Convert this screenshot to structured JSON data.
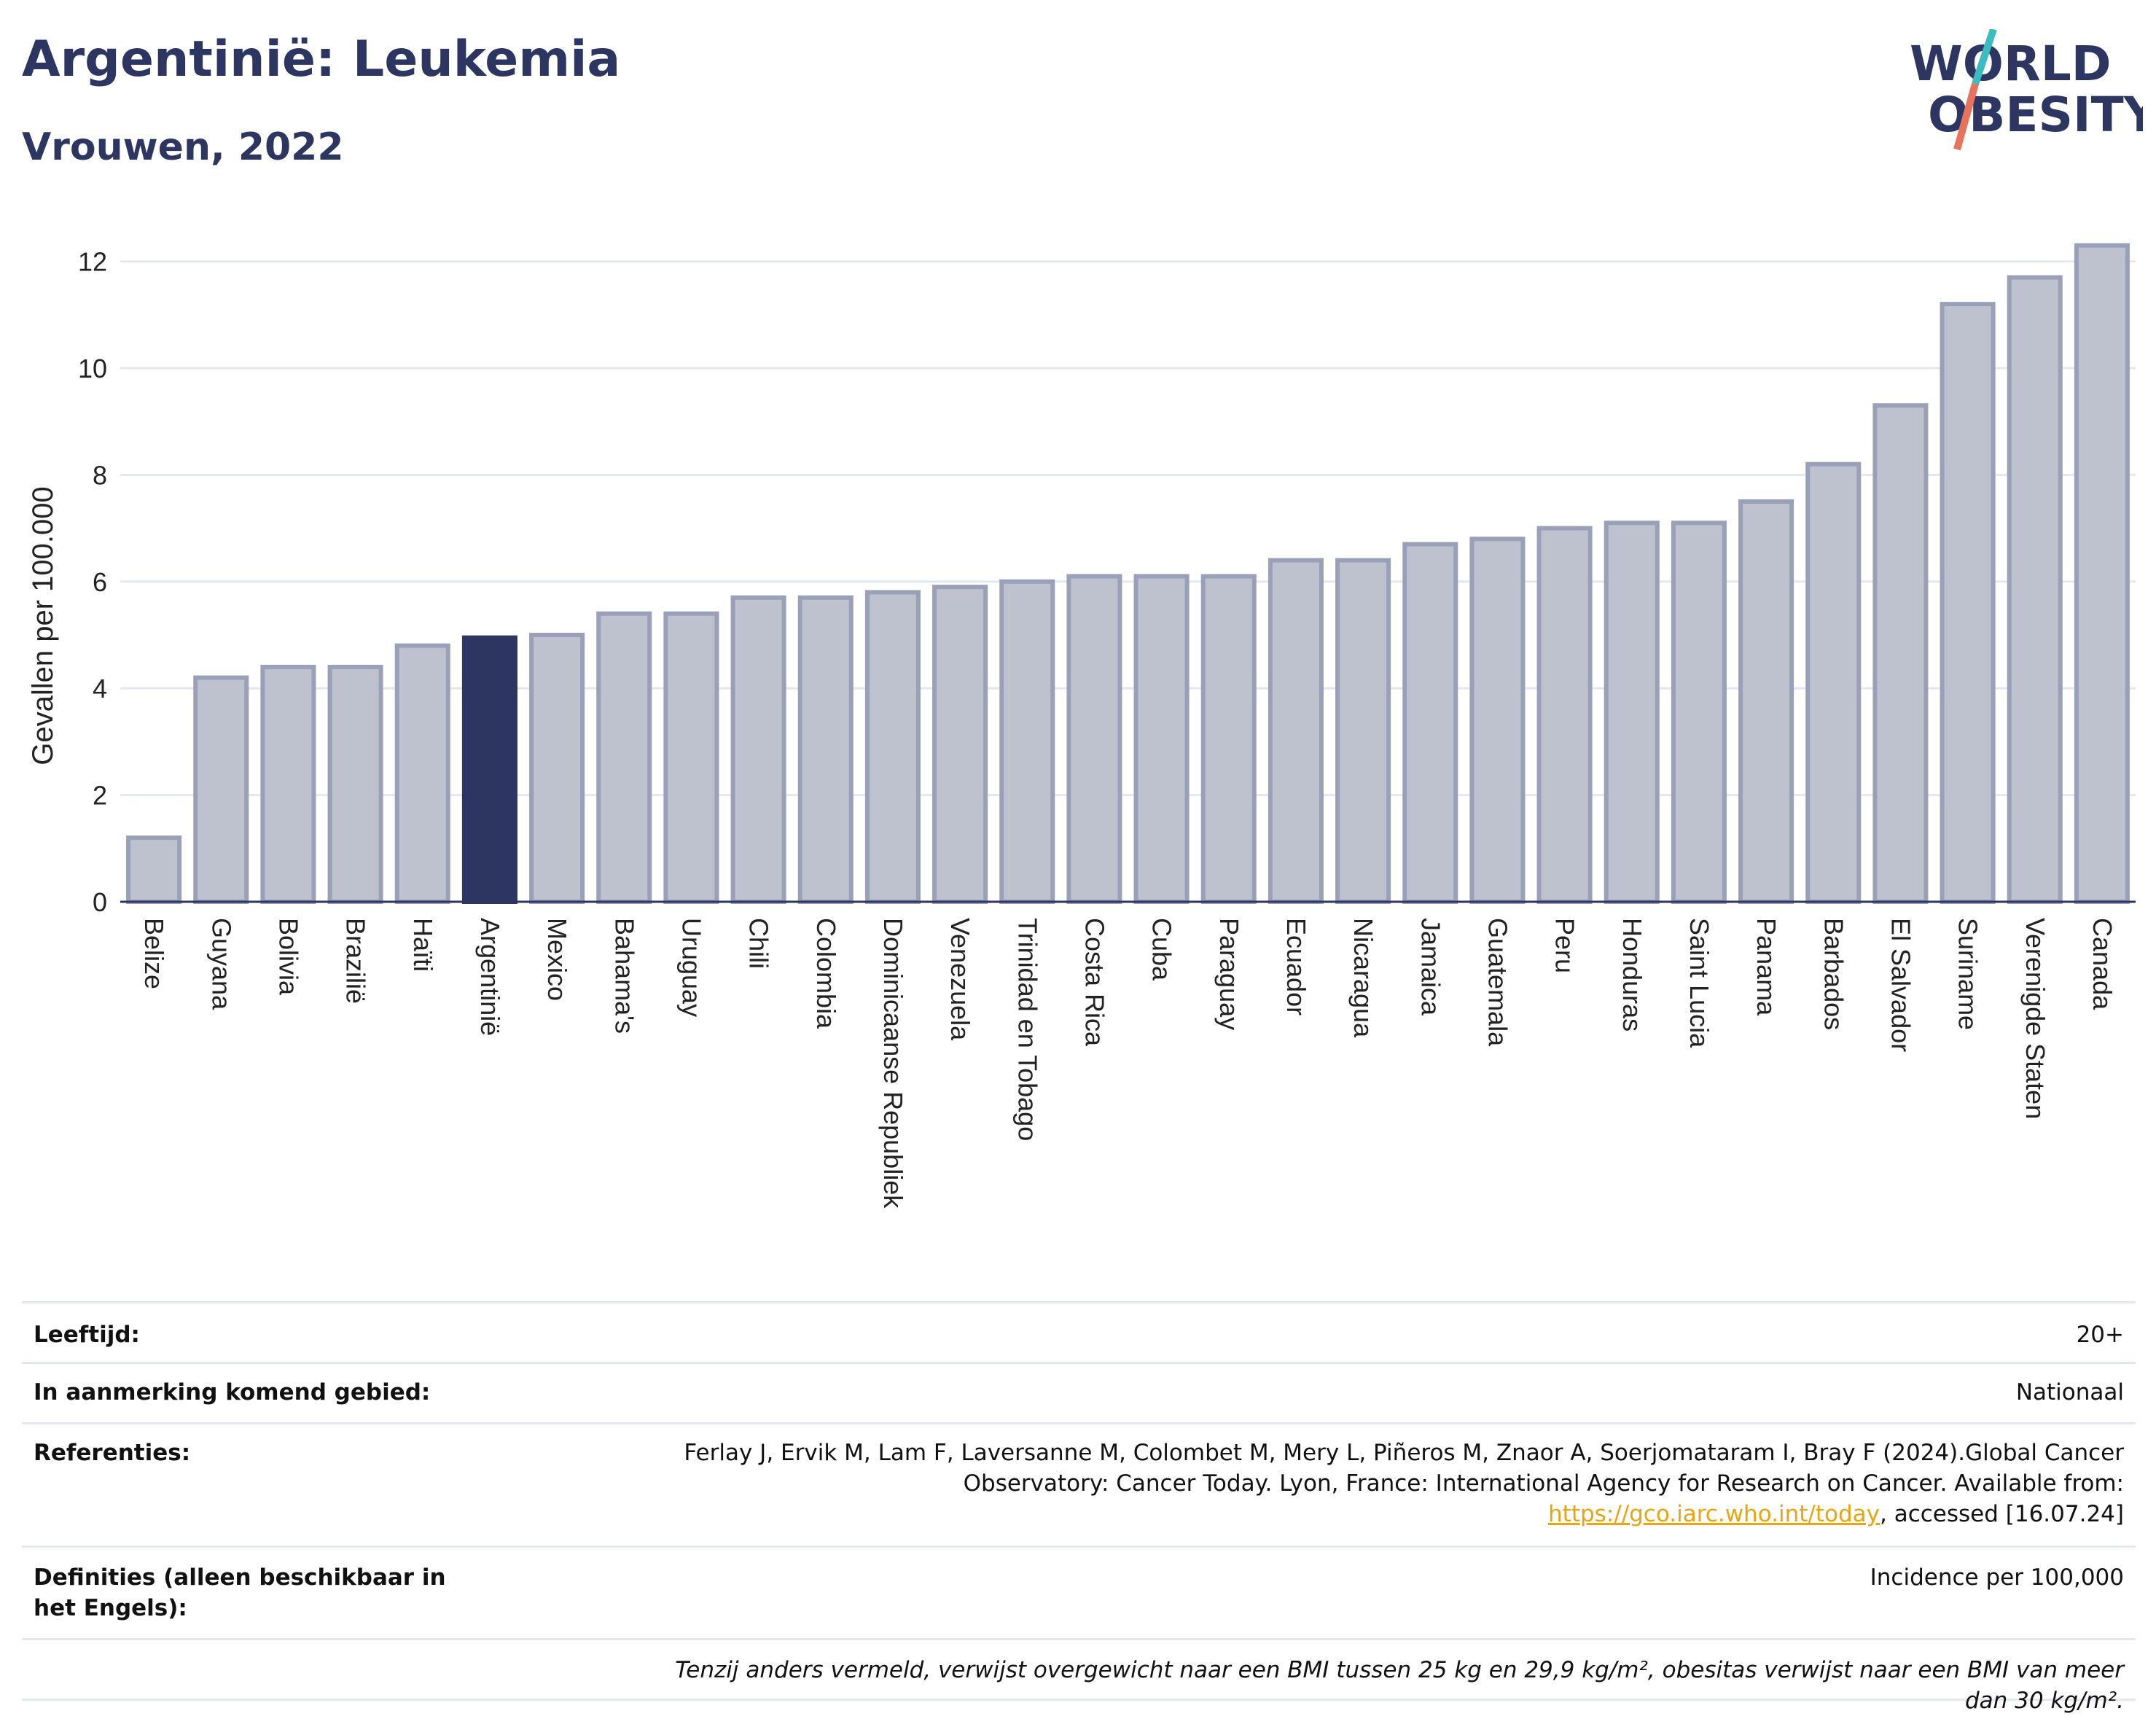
{
  "header": {
    "title": "Argentinië: Leukemia",
    "subtitle": "Vrouwen, 2022",
    "logo_line1": "WORLD",
    "logo_line2": "OBESITY"
  },
  "colors": {
    "title": "#2c3660",
    "bar_default": "#bec2cf",
    "bar_default_border": "#9aa0b8",
    "bar_highlight": "#2c3660",
    "grid": "#e6e8f0",
    "link": "#e7a513",
    "logo_teal": "#3bbcc0",
    "logo_coral": "#e8735c"
  },
  "chart_data": {
    "type": "bar",
    "ylabel": "Gevallen per 100.000",
    "xlabel": "",
    "ylim": [
      0,
      12.8
    ],
    "yticks": [
      0,
      2,
      4,
      6,
      8,
      10,
      12
    ],
    "grid": true,
    "highlight": "Argentinië",
    "categories": [
      "Belize",
      "Guyana",
      "Bolivia",
      "Brazilië",
      "Haïti",
      "Argentinië",
      "Mexico",
      "Bahama's",
      "Uruguay",
      "Chili",
      "Colombia",
      "Dominicaanse Republiek",
      "Venezuela",
      "Trinidad en Tobago",
      "Costa Rica",
      "Cuba",
      "Paraguay",
      "Ecuador",
      "Nicaragua",
      "Jamaica",
      "Guatemala",
      "Peru",
      "Honduras",
      "Saint Lucia",
      "Panama",
      "Barbados",
      "El Salvador",
      "Suriname",
      "Verenigde Staten",
      "Canada"
    ],
    "values": [
      1.2,
      4.2,
      4.4,
      4.4,
      4.8,
      4.95,
      5.0,
      5.4,
      5.4,
      5.7,
      5.7,
      5.8,
      5.9,
      6.0,
      6.1,
      6.1,
      6.1,
      6.4,
      6.4,
      6.7,
      6.8,
      7.0,
      7.1,
      7.1,
      7.5,
      8.2,
      9.3,
      11.2,
      11.7,
      12.3
    ]
  },
  "meta": {
    "rows": [
      {
        "key": "Leeftijd:",
        "value": "20+"
      },
      {
        "key": "In aanmerking komend gebied:",
        "value": "Nationaal"
      },
      {
        "key": "Referenties:",
        "value_before": "Ferlay J, Ervik M, Lam F, Laversanne M, Colombet M, Mery L, Piñeros M, Znaor A, Soerjomataram I, Bray F (2024).Global Cancer Observatory: Cancer Today. Lyon, France: International Agency for Research on Cancer. Available from: ",
        "link": "https://gco.iarc.who.int/today",
        "value_after": ", accessed [16.07.24]"
      },
      {
        "key": "Definities (alleen beschikbaar in het Engels):",
        "value": "Incidence per 100,000"
      }
    ],
    "note": "Tenzij anders vermeld, verwijst overgewicht naar een BMI tussen 25 kg en 29,9 kg/m², obesitas verwijst naar een BMI van meer dan 30 kg/m²."
  }
}
